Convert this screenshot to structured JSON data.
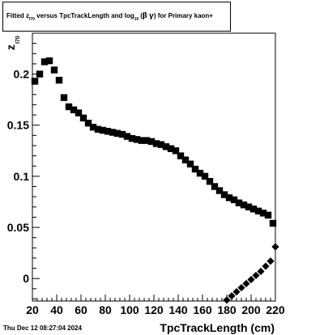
{
  "title": {
    "part1": "Fitted  z",
    "part1_sub": "I70",
    "part2": "  versus TpcTrackLength and log",
    "part2_sub": "10",
    "part3": "(",
    "beta": "β",
    "gamma": "γ",
    "part4": ") for Primary kaon+"
  },
  "footer_date": "Thu Dec 12 08:27:04 2024",
  "chart_data": {
    "type": "scatter",
    "title": "Fitted z_I70 versus TpcTrackLength and log10(βγ) for Primary kaon+",
    "xlabel": "TpcTrackLength (cm)",
    "ylabel": "z",
    "ylabel_sub": "I70",
    "xlim": [
      20,
      220
    ],
    "ylim": [
      -0.022,
      0.24
    ],
    "x_ticks": [
      20,
      40,
      60,
      80,
      100,
      120,
      140,
      160,
      180,
      200,
      220
    ],
    "x_tick_labels": [
      "20",
      "40",
      "60",
      "80",
      "100",
      "120",
      "140",
      "160",
      "180",
      "200",
      "220"
    ],
    "y_ticks": [
      0,
      0.05,
      0.1,
      0.15,
      0.2
    ],
    "y_tick_labels": [
      "0",
      "0.05",
      "0.1",
      "0.15",
      "0.2"
    ],
    "grid": false,
    "series": [
      {
        "marker": "square",
        "x": [
          22,
          26,
          30,
          34,
          38,
          42,
          46,
          50,
          54,
          58,
          62,
          66,
          70,
          74,
          78,
          82,
          86,
          90,
          94,
          98,
          102,
          106,
          110,
          114,
          118,
          122,
          126,
          130,
          134,
          138,
          142,
          146,
          150,
          154,
          158,
          162,
          166,
          170,
          174,
          178,
          182,
          186,
          190,
          194,
          198,
          202,
          206,
          210,
          214,
          218
        ],
        "y": [
          0.193,
          0.2,
          0.212,
          0.213,
          0.204,
          0.194,
          0.177,
          0.168,
          0.165,
          0.162,
          0.157,
          0.152,
          0.148,
          0.146,
          0.145,
          0.144,
          0.143,
          0.142,
          0.141,
          0.139,
          0.137,
          0.136,
          0.135,
          0.135,
          0.134,
          0.132,
          0.131,
          0.129,
          0.127,
          0.125,
          0.12,
          0.116,
          0.112,
          0.107,
          0.103,
          0.1,
          0.095,
          0.09,
          0.086,
          0.082,
          0.079,
          0.077,
          0.074,
          0.072,
          0.07,
          0.068,
          0.066,
          0.064,
          0.062,
          0.054
        ]
      },
      {
        "marker": "diamond",
        "x": [
          180,
          184,
          188,
          192,
          196,
          200,
          204,
          208,
          212,
          216,
          220
        ],
        "y": [
          -0.021,
          -0.017,
          -0.013,
          -0.009,
          -0.005,
          -0.001,
          0.003,
          0.007,
          0.012,
          0.017,
          0.031
        ]
      }
    ]
  }
}
